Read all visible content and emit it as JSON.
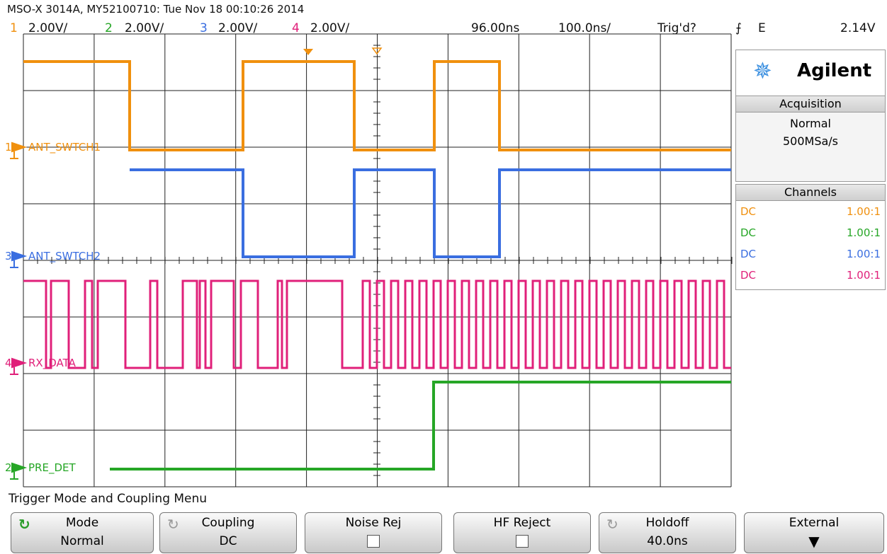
{
  "header": {
    "title": "MSO-X 3014A, MY52100710: Tue Nov 18 00:10:26 2014",
    "channels": [
      {
        "number": "1",
        "scale": "2.00V/"
      },
      {
        "number": "2",
        "scale": "2.00V/"
      },
      {
        "number": "3",
        "scale": "2.00V/"
      },
      {
        "number": "4",
        "scale": "2.00V/"
      }
    ],
    "delay": "96.00ns",
    "timebase": "100.0ns/",
    "trigger_status": "Trig'd?",
    "trigger_source": "E",
    "trigger_level": "2.14V"
  },
  "waveform_labels": [
    {
      "channel": "1",
      "name": "ANT_SWTCH1"
    },
    {
      "channel": "3",
      "name": "ANT_SWTCH2"
    },
    {
      "channel": "4",
      "name": "RX_DATA"
    },
    {
      "channel": "2",
      "name": "PRE_DET"
    }
  ],
  "side_panel": {
    "brand": "Agilent",
    "acquisition": {
      "title": "Acquisition",
      "mode": "Normal",
      "rate": "500MSa/s"
    },
    "channels": {
      "title": "Channels",
      "rows": [
        {
          "coupling": "DC",
          "probe": "1.00:1"
        },
        {
          "coupling": "DC",
          "probe": "1.00:1"
        },
        {
          "coupling": "DC",
          "probe": "1.00:1"
        },
        {
          "coupling": "DC",
          "probe": "1.00:1"
        }
      ]
    }
  },
  "menu": {
    "title": "Trigger Mode and Coupling Menu",
    "softkeys": [
      {
        "label": "Mode",
        "value": "Normal"
      },
      {
        "label": "Coupling",
        "value": "DC"
      },
      {
        "label": "Noise Rej"
      },
      {
        "label": "HF Reject"
      },
      {
        "label": "Holdoff",
        "value": "40.0ns"
      },
      {
        "label": "External"
      }
    ]
  }
}
